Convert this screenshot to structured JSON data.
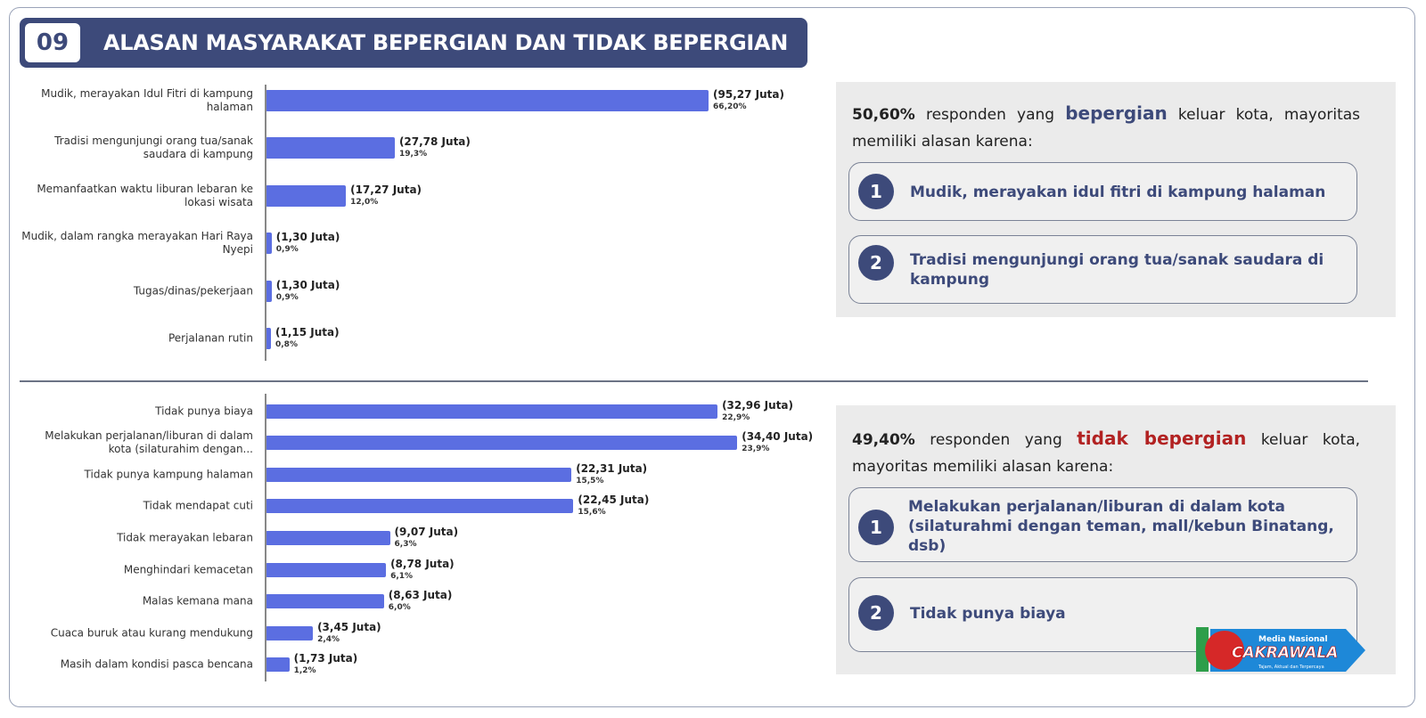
{
  "header": {
    "number": "09",
    "title": "ALASAN MASYARAKAT BEPERGIAN DAN TIDAK BEPERGIAN"
  },
  "chart_data": [
    {
      "type": "bar",
      "color": "#5b6ee1",
      "xlim": [
        0,
        115
      ],
      "categories": [
        "Mudik, merayakan Idul Fitri di kampung halaman",
        "Tradisi mengunjungi orang tua/sanak saudara di kampung",
        "Memanfaatkan waktu liburan lebaran ke lokasi wisata",
        "Mudik, dalam rangka merayakan Hari Raya Nyepi",
        "Tugas/dinas/pekerjaan",
        "Perjalanan rutin"
      ],
      "values": [
        95.27,
        27.78,
        17.27,
        1.3,
        1.3,
        1.15
      ],
      "value_labels": [
        "(95,27 Juta)",
        "(27,78 Juta)",
        "(17,27 Juta)",
        "(1,30 Juta)",
        "(1,30 Juta)",
        "(1,15 Juta)"
      ],
      "percents": [
        66.2,
        19.3,
        12.0,
        0.9,
        0.9,
        0.8
      ],
      "percent_labels": [
        "66,20%",
        "19,3%",
        "12,0%",
        "0,9%",
        "0,9%",
        "0,8%"
      ]
    },
    {
      "type": "bar",
      "color": "#5b6ee1",
      "xlim": [
        0,
        39
      ],
      "categories": [
        "Tidak punya biaya",
        "Melakukan perjalanan/liburan di dalam kota (silaturahim dengan...",
        "Tidak punya kampung halaman",
        "Tidak mendapat cuti",
        "Tidak merayakan lebaran",
        "Menghindari kemacetan",
        "Malas kemana mana",
        "Cuaca buruk atau kurang mendukung",
        "Masih dalam kondisi pasca bencana"
      ],
      "values": [
        32.96,
        34.4,
        22.31,
        22.45,
        9.07,
        8.78,
        8.63,
        3.45,
        1.73
      ],
      "value_labels": [
        "(32,96 Juta)",
        "(34,40 Juta)",
        "(22,31 Juta)",
        "(22,45 Juta)",
        "(9,07 Juta)",
        "(8,78 Juta)",
        "(8,63 Juta)",
        "(3,45 Juta)",
        "(1,73 Juta)"
      ],
      "percents": [
        22.9,
        23.9,
        15.5,
        15.6,
        6.3,
        6.1,
        6.0,
        2.4,
        1.2
      ],
      "percent_labels": [
        "22,9%",
        "23,9%",
        "15,5%",
        "15,6%",
        "6,3%",
        "6,1%",
        "6,0%",
        "2,4%",
        "1,2%"
      ]
    }
  ],
  "panels": [
    {
      "lead": {
        "percent": "50,60%",
        "text1": "responden yang",
        "highlight": "bepergian",
        "text2": "keluar kota, mayoritas memiliki alasan karena:"
      },
      "items": [
        {
          "number": "1",
          "text": "Mudik, merayakan idul fitri di kampung halaman"
        },
        {
          "number": "2",
          "text": "Tradisi mengunjungi orang tua/sanak saudara di kampung"
        }
      ]
    },
    {
      "lead": {
        "percent": "49,40%",
        "text1": "responden yang",
        "highlight": "tidak bepergian",
        "text2": "keluar kota, mayoritas memiliki alasan karena:"
      },
      "items": [
        {
          "number": "1",
          "text": "Melakukan perjalanan/liburan di dalam kota (silaturahmi dengan teman, mall/kebun Binatang, dsb)"
        },
        {
          "number": "2",
          "text": "Tidak punya biaya"
        }
      ]
    }
  ],
  "logo": {
    "top": "Media Nasional",
    "name": "CAKRAWALA",
    "tagline": "Tajam, Aktual dan Terpercaya"
  }
}
